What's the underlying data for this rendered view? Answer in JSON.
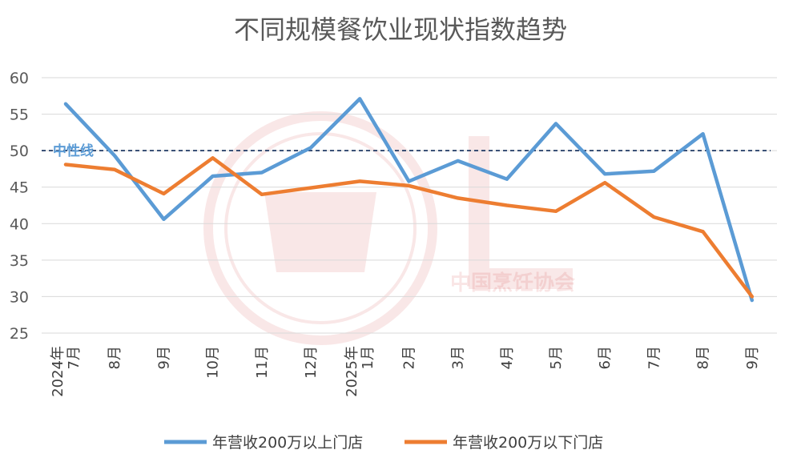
{
  "chart_data": {
    "type": "line",
    "title": "不同规模餐饮业现状指数趋势",
    "categories": [
      [
        "2024年",
        "7月"
      ],
      [
        "8月"
      ],
      [
        "9月"
      ],
      [
        "10月"
      ],
      [
        "11月"
      ],
      [
        "12月"
      ],
      [
        "2025年",
        "1月"
      ],
      [
        "2月"
      ],
      [
        "3月"
      ],
      [
        "4月"
      ],
      [
        "5月"
      ],
      [
        "6月"
      ],
      [
        "7月"
      ],
      [
        "8月"
      ],
      [
        "9月"
      ]
    ],
    "series": [
      {
        "name": "年营收200万以上门店",
        "color": "#5B9BD5",
        "values": [
          56.4,
          49.3,
          40.6,
          46.5,
          47.0,
          50.4,
          57.1,
          45.8,
          48.6,
          46.1,
          53.7,
          46.8,
          47.2,
          52.3,
          29.5
        ]
      },
      {
        "name": "年营收200万以下门店",
        "color": "#ED7D31",
        "values": [
          48.1,
          47.4,
          44.1,
          49.0,
          44.0,
          44.9,
          45.8,
          45.2,
          43.5,
          42.5,
          41.7,
          45.6,
          40.9,
          38.9,
          30.0
        ]
      }
    ],
    "ylim": [
      25,
      60
    ],
    "yticks": [
      25,
      30,
      35,
      40,
      45,
      50,
      55,
      60
    ],
    "reference_line": {
      "value": 50,
      "label": "中性线",
      "color": "#1F3864",
      "label_color": "#5B9BD5",
      "style": "dashed"
    },
    "grid": true,
    "legend_position": "bottom",
    "watermark": "中国烹饪协会"
  }
}
